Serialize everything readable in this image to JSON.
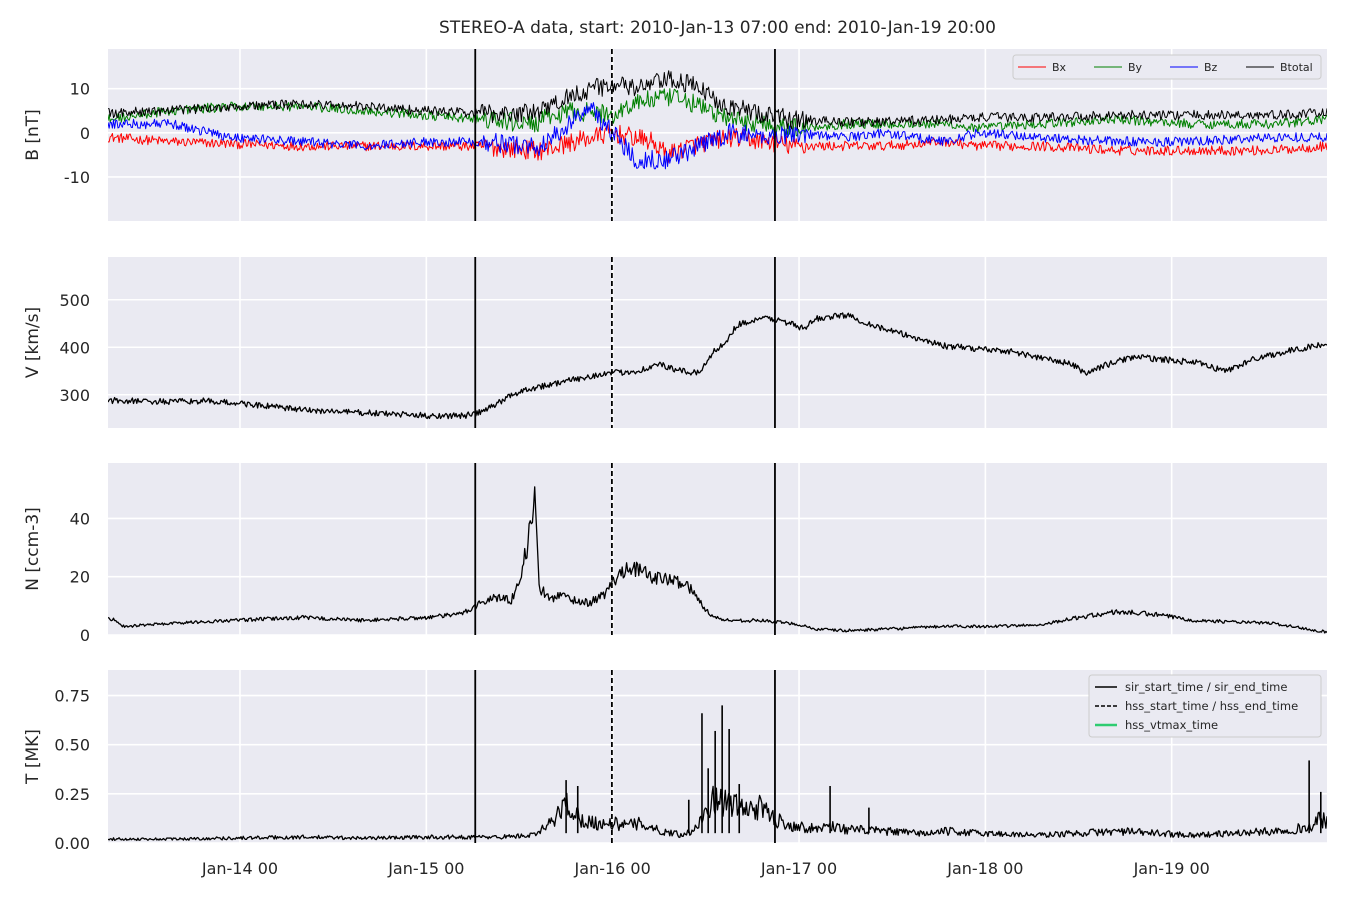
{
  "figure": {
    "title": "STEREO-A data, start: 2010-Jan-13 07:00  end: 2010-Jan-19 20:00",
    "x_tick_labels": [
      "Jan-14 00",
      "Jan-15 00",
      "Jan-16 00",
      "Jan-17 00",
      "Jan-18 00",
      "Jan-19 00"
    ]
  },
  "chart_data": [
    {
      "type": "line",
      "ylabel": "B [nT]",
      "ylim": [
        -20,
        19
      ],
      "yticks": [
        -10,
        0,
        10
      ],
      "grid": true,
      "legend_placement": "top-right",
      "series": [
        {
          "name": "Bx",
          "color": "#ff0000",
          "kind": "noisy",
          "x": [
            0,
            8,
            16,
            25,
            33,
            41,
            48,
            55,
            56,
            60,
            65,
            70,
            72,
            75,
            80,
            85,
            88,
            95,
            100,
            108,
            112,
            120,
            130,
            140,
            150,
            157
          ],
          "values": [
            -1,
            -2,
            -2.5,
            -3,
            -3,
            -3,
            -3,
            -4,
            -4,
            -2,
            0,
            -2,
            -5,
            -3,
            -1,
            -2,
            -3,
            -3,
            -3,
            -2,
            -3,
            -3,
            -4,
            -4,
            -4,
            -3
          ]
        },
        {
          "name": "By",
          "color": "#008000",
          "kind": "noisy",
          "x": [
            0,
            8,
            16,
            25,
            33,
            41,
            48,
            55,
            56,
            60,
            65,
            68,
            72,
            75,
            80,
            85,
            88,
            95,
            100,
            108,
            112,
            120,
            130,
            140,
            150,
            157
          ],
          "values": [
            3,
            5,
            6,
            6,
            5,
            4,
            3,
            2,
            3,
            5,
            4,
            7,
            8,
            7,
            3,
            2,
            1,
            2,
            2,
            2,
            1,
            2,
            3,
            2,
            2,
            3
          ]
        },
        {
          "name": "Bz",
          "color": "#0000ff",
          "kind": "noisy",
          "x": [
            0,
            8,
            16,
            25,
            33,
            41,
            48,
            55,
            56,
            60,
            62,
            65,
            68,
            72,
            75,
            80,
            85,
            88,
            95,
            100,
            108,
            112,
            120,
            130,
            140,
            150,
            157
          ],
          "values": [
            2,
            2,
            -1,
            -2,
            -3,
            -2,
            -2,
            -3,
            -3,
            3,
            6,
            0,
            -6,
            -6,
            -4,
            0,
            -1,
            0,
            -1,
            0,
            -2,
            0,
            -1,
            -2,
            -2,
            -1,
            -1
          ]
        },
        {
          "name": "Btotal",
          "color": "#000000",
          "kind": "noisy",
          "x": [
            0,
            8,
            16,
            25,
            33,
            41,
            48,
            55,
            56,
            60,
            65,
            68,
            72,
            75,
            80,
            85,
            88,
            95,
            100,
            108,
            112,
            120,
            130,
            140,
            150,
            157
          ],
          "values": [
            4.5,
            5,
            6,
            6.5,
            6,
            5,
            4.5,
            4.5,
            5,
            9,
            11,
            10,
            12,
            11,
            6,
            4,
            3,
            2.5,
            2.5,
            3,
            3.5,
            3.5,
            4,
            4,
            4,
            4.5
          ]
        }
      ]
    },
    {
      "type": "line",
      "ylabel": "V [km/s]",
      "ylim": [
        230,
        590
      ],
      "yticks": [
        300,
        400,
        500
      ],
      "grid": true,
      "series": [
        {
          "color": "#000000",
          "kind": "noisy",
          "x": [
            0,
            8,
            12,
            17,
            25,
            33,
            41,
            46,
            48,
            50,
            52,
            54,
            58,
            63,
            68,
            70,
            71,
            73,
            76,
            78,
            80,
            81,
            85,
            88,
            89,
            90,
            91,
            95,
            100,
            108,
            116,
            120,
            124,
            126,
            128,
            132,
            140,
            144,
            148,
            156,
            157
          ],
          "values": [
            288,
            285,
            287,
            282,
            268,
            262,
            256,
            256,
            263,
            280,
            300,
            312,
            325,
            342,
            350,
            358,
            365,
            352,
            345,
            390,
            420,
            448,
            462,
            450,
            440,
            442,
            460,
            468,
            438,
            402,
            392,
            378,
            365,
            345,
            360,
            380,
            368,
            350,
            378,
            405,
            400
          ]
        }
      ]
    },
    {
      "type": "line",
      "ylabel": "N [ccm-3]",
      "ylim": [
        0,
        59
      ],
      "yticks": [
        0,
        20,
        40
      ],
      "grid": true,
      "series": [
        {
          "color": "#000000",
          "kind": "noisy",
          "x": [
            0,
            1,
            2,
            8,
            16,
            25,
            33,
            41,
            45,
            46,
            48,
            50,
            52,
            53,
            54,
            55,
            55.5,
            56,
            57,
            58,
            60,
            62,
            64,
            65,
            67,
            70,
            72,
            74,
            75,
            76,
            78,
            80,
            84,
            88,
            90,
            91,
            95,
            100,
            108,
            112,
            115,
            120,
            125,
            130,
            135,
            140,
            150,
            157
          ],
          "values": [
            6,
            5,
            3,
            4,
            5,
            6,
            5,
            6,
            7,
            8,
            11,
            13,
            12,
            20,
            30,
            48,
            16,
            15,
            12,
            14,
            12,
            11,
            14,
            18,
            24,
            20,
            19,
            18,
            16,
            12,
            6,
            5,
            5,
            4,
            3,
            2,
            1.5,
            2,
            3,
            3,
            3,
            3.5,
            6,
            8,
            7,
            5,
            4,
            1
          ]
        }
      ]
    },
    {
      "type": "line",
      "ylabel": "T [MK]",
      "ylim": [
        0,
        0.88
      ],
      "yticks": [
        0.0,
        0.25,
        0.5,
        0.75
      ],
      "ytick_labels": [
        "0.00",
        "0.25",
        "0.50",
        "0.75"
      ],
      "grid": true,
      "legend_placement": "top-right",
      "series": [
        {
          "color": "#000000",
          "kind": "noisy",
          "x": [
            0,
            8,
            16,
            25,
            33,
            41,
            48,
            50,
            55,
            57,
            59,
            61,
            63,
            65,
            67,
            69,
            71,
            73,
            74,
            75,
            77,
            78,
            80,
            82,
            84,
            85,
            86,
            88,
            90,
            91,
            92,
            93,
            95,
            100,
            104,
            106,
            108,
            112,
            120,
            130,
            140,
            150,
            155,
            156,
            157
          ],
          "values": [
            0.02,
            0.02,
            0.025,
            0.03,
            0.025,
            0.03,
            0.03,
            0.03,
            0.04,
            0.1,
            0.2,
            0.12,
            0.1,
            0.1,
            0.09,
            0.1,
            0.06,
            0.05,
            0.04,
            0.06,
            0.15,
            0.22,
            0.2,
            0.17,
            0.18,
            0.15,
            0.12,
            0.09,
            0.08,
            0.07,
            0.08,
            0.09,
            0.07,
            0.06,
            0.05,
            0.05,
            0.06,
            0.05,
            0.04,
            0.06,
            0.04,
            0.06,
            0.08,
            0.12,
            0.11
          ]
        }
      ],
      "spikes": {
        "x": [
          59,
          60.5,
          74.8,
          76.5,
          77.3,
          78.2,
          79.1,
          80,
          81.3,
          93,
          98,
          154.7,
          156.2
        ],
        "values": [
          0.32,
          0.29,
          0.22,
          0.66,
          0.38,
          0.57,
          0.7,
          0.58,
          0.3,
          0.29,
          0.18,
          0.42,
          0.26
        ]
      }
    }
  ],
  "x_axis": {
    "hours_range": [
      0,
      157
    ],
    "tick_hours": [
      17,
      41,
      65,
      89,
      113,
      137
    ]
  },
  "events": [
    {
      "name": "sir_start_time",
      "x": 47.3,
      "style": "solid",
      "color": "#000000"
    },
    {
      "name": "hss_start_time",
      "x": 64.9,
      "style": "dashed",
      "color": "#000000"
    },
    {
      "name": "sir_end_time",
      "x": 85.9,
      "style": "solid",
      "color": "#000000"
    }
  ],
  "legend_bottom": [
    {
      "label": "sir_start_time / sir_end_time",
      "style": "solid",
      "color": "#000000"
    },
    {
      "label": "hss_start_time / hss_end_time",
      "style": "dashed",
      "color": "#000000"
    },
    {
      "label": "hss_vtmax_time",
      "style": "solid",
      "color": "#2ecc71"
    }
  ],
  "colors": {
    "panel_bg": "#eaeaf2",
    "grid": "#ffffff"
  }
}
